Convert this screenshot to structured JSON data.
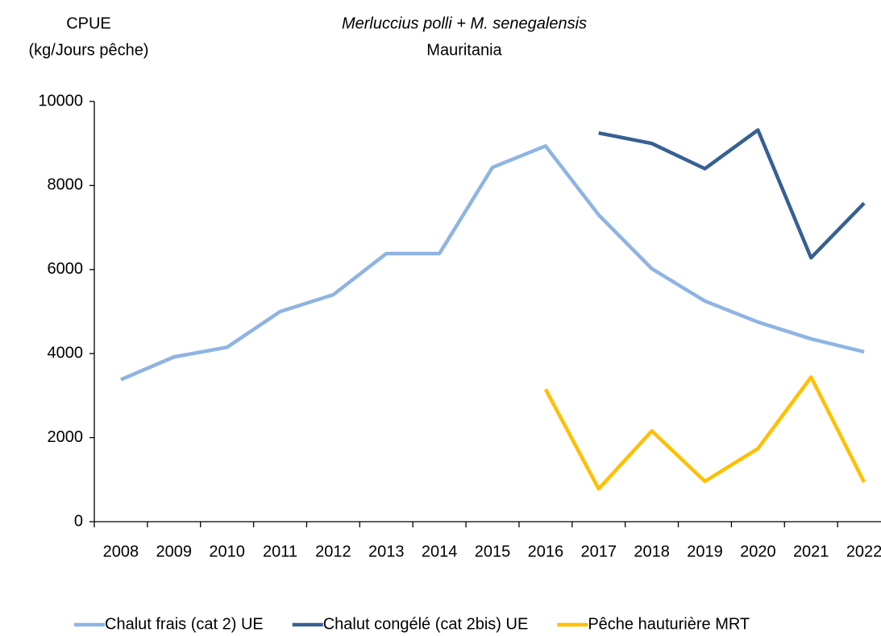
{
  "chart_data": {
    "type": "line",
    "title": "Merluccius polli + M. senegalensis",
    "subtitle": "Mauritania",
    "ylabel": [
      "CPUE",
      "(kg/Jours pêche)"
    ],
    "categories": [
      "2008",
      "2009",
      "2010",
      "2011",
      "2012",
      "2013",
      "2014",
      "2015",
      "2016",
      "2017",
      "2018",
      "2019",
      "2020",
      "2021",
      "2022"
    ],
    "series": [
      {
        "name": "Chalut frais (cat 2) UE",
        "color": "#8eb4e3",
        "values": [
          3380,
          3920,
          4150,
          5000,
          5400,
          6380,
          6380,
          8430,
          8940,
          7300,
          6020,
          5250,
          4750,
          4350,
          4040
        ]
      },
      {
        "name": "Chalut congélé (cat 2bis) UE",
        "color": "#376092",
        "values": [
          null,
          null,
          null,
          null,
          null,
          null,
          null,
          null,
          null,
          9250,
          9000,
          8400,
          9320,
          6280,
          7580
        ]
      },
      {
        "name": "Pêche hauturière MRT",
        "color": "#ffc000",
        "values": [
          null,
          null,
          null,
          null,
          null,
          null,
          null,
          null,
          3150,
          780,
          2160,
          960,
          1740,
          3440,
          940
        ]
      }
    ],
    "ylim": [
      0,
      10000
    ],
    "yticks": [
      0,
      2000,
      4000,
      6000,
      8000,
      10000
    ],
    "legend": "bottom"
  }
}
